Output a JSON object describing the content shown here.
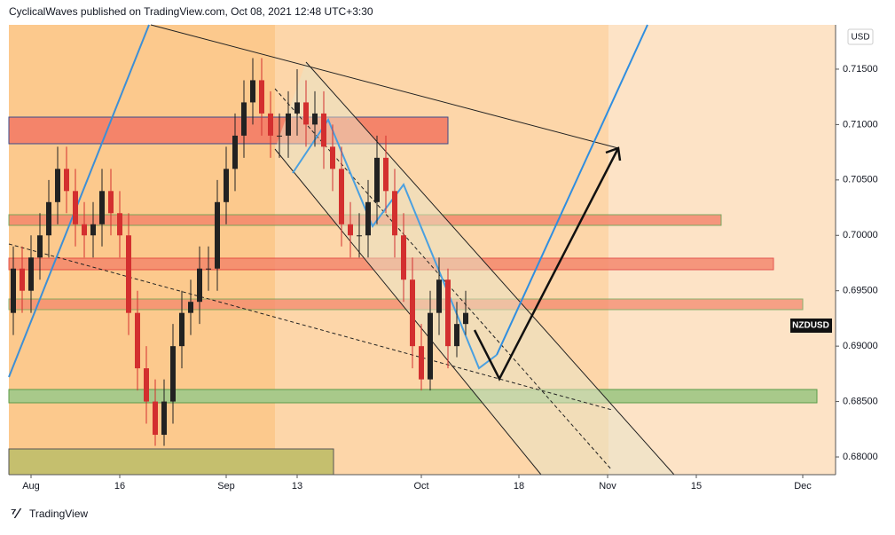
{
  "header": {
    "text": "CyclicalWaves published on TradingView.com, Oct 08, 2021 12:48 UTC+3:30"
  },
  "footer": {
    "text": "TradingView"
  },
  "chart_data": {
    "type": "candlestick",
    "currency": "USD",
    "symbol": "NZDUSD",
    "up_color": "#222222",
    "down_color": "#d32f2f",
    "open": [
      0.693,
      0.697,
      0.695,
      0.698,
      0.7,
      0.703,
      0.706,
      0.704,
      0.701,
      0.7,
      0.701,
      0.704,
      0.702,
      0.7,
      0.693,
      0.688,
      0.685,
      0.682,
      0.685,
      0.69,
      0.693,
      0.694,
      0.697,
      0.697,
      0.703,
      0.706,
      0.709,
      0.712,
      0.714,
      0.711,
      0.709,
      0.709,
      0.711,
      0.712,
      0.71,
      0.711,
      0.708,
      0.706,
      0.701,
      0.7,
      0.7,
      0.703,
      0.707,
      0.704,
      0.7,
      0.696,
      0.69,
      0.687,
      0.693,
      0.696,
      0.69,
      0.692
    ],
    "high": [
      0.699,
      0.699,
      0.7,
      0.702,
      0.705,
      0.708,
      0.708,
      0.706,
      0.703,
      0.703,
      0.706,
      0.706,
      0.704,
      0.702,
      0.695,
      0.69,
      0.687,
      0.687,
      0.692,
      0.695,
      0.696,
      0.699,
      0.699,
      0.705,
      0.708,
      0.711,
      0.714,
      0.716,
      0.716,
      0.713,
      0.711,
      0.713,
      0.715,
      0.714,
      0.713,
      0.713,
      0.71,
      0.708,
      0.703,
      0.702,
      0.705,
      0.709,
      0.709,
      0.706,
      0.702,
      0.698,
      0.692,
      0.695,
      0.698,
      0.697,
      0.694,
      0.695
    ],
    "low": [
      0.691,
      0.693,
      0.693,
      0.696,
      0.698,
      0.701,
      0.702,
      0.699,
      0.698,
      0.698,
      0.699,
      0.7,
      0.698,
      0.691,
      0.686,
      0.683,
      0.681,
      0.681,
      0.683,
      0.688,
      0.691,
      0.692,
      0.695,
      0.695,
      0.701,
      0.704,
      0.707,
      0.71,
      0.709,
      0.707,
      0.707,
      0.707,
      0.709,
      0.708,
      0.708,
      0.706,
      0.704,
      0.699,
      0.698,
      0.698,
      0.698,
      0.701,
      0.702,
      0.698,
      0.694,
      0.688,
      0.686,
      0.686,
      0.691,
      0.688,
      0.689,
      0.691
    ],
    "close": [
      0.697,
      0.695,
      0.698,
      0.7,
      0.703,
      0.706,
      0.704,
      0.701,
      0.7,
      0.701,
      0.704,
      0.702,
      0.7,
      0.693,
      0.688,
      0.685,
      0.682,
      0.685,
      0.69,
      0.693,
      0.694,
      0.697,
      0.697,
      0.703,
      0.706,
      0.709,
      0.712,
      0.714,
      0.711,
      0.709,
      0.709,
      0.711,
      0.712,
      0.71,
      0.711,
      0.708,
      0.706,
      0.701,
      0.7,
      0.7,
      0.703,
      0.707,
      0.704,
      0.7,
      0.696,
      0.69,
      0.687,
      0.693,
      0.696,
      0.69,
      0.692,
      0.693
    ],
    "ylim": [
      0.6784,
      0.719
    ],
    "yticks": [
      {
        "value": 0.68,
        "label": "0.68000"
      },
      {
        "value": 0.685,
        "label": "0.68500"
      },
      {
        "value": 0.69,
        "label": "0.69000"
      },
      {
        "value": 0.695,
        "label": "0.69500"
      },
      {
        "value": 0.7,
        "label": "0.70000"
      },
      {
        "value": 0.705,
        "label": "0.70500"
      },
      {
        "value": 0.71,
        "label": "0.71000"
      },
      {
        "value": 0.715,
        "label": "0.71500"
      }
    ],
    "xlim": [
      -0.5,
      92.7
    ],
    "xticks": [
      {
        "value": 2,
        "label": "Aug"
      },
      {
        "value": 12,
        "label": "16"
      },
      {
        "value": 24,
        "label": "Sep"
      },
      {
        "value": 32,
        "label": "13"
      },
      {
        "value": 46,
        "label": "Oct"
      },
      {
        "value": 57,
        "label": "18"
      },
      {
        "value": 67,
        "label": "Nov"
      },
      {
        "value": 77,
        "label": "15"
      },
      {
        "value": 89,
        "label": "Dec"
      }
    ]
  }
}
